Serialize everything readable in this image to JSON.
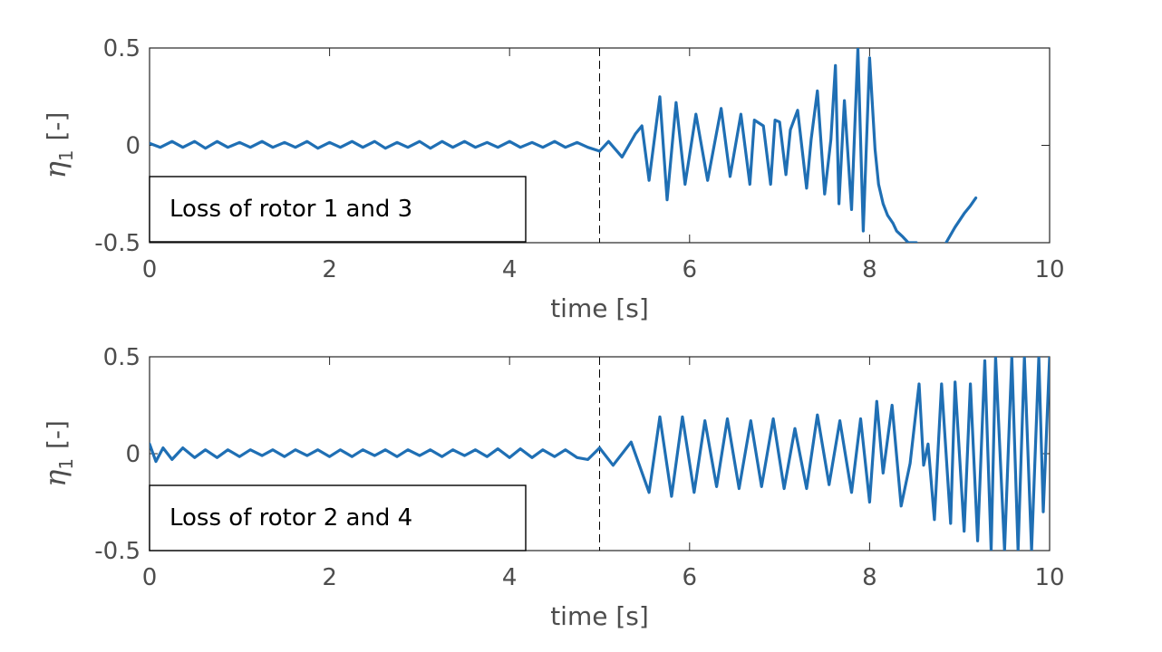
{
  "chart_data": [
    {
      "type": "line",
      "xlabel": "time [s]",
      "ylabel_main": "η",
      "ylabel_sub": "1",
      "ylabel_unit": "[-]",
      "xlim": [
        0,
        10
      ],
      "ylim": [
        -0.5,
        0.5
      ],
      "xticks": [
        0,
        2,
        4,
        6,
        8,
        10
      ],
      "xtick_labels": [
        "0",
        "2",
        "4",
        "6",
        "8",
        "10"
      ],
      "yticks": [
        -0.5,
        0,
        0.5
      ],
      "ytick_labels": [
        "-0.5",
        "0",
        "0.5"
      ],
      "grid": false,
      "failure_marker_x": 5,
      "annotation": "Loss of rotor 1 and 3",
      "series": [
        {
          "color": "#1f6fb4",
          "segments": [
            {
              "t": [
                0,
                0.12,
                0.25,
                0.37,
                0.5,
                0.62,
                0.75,
                0.87,
                1.0,
                1.12,
                1.25,
                1.37,
                1.5,
                1.62,
                1.75,
                1.87,
                2.0,
                2.12,
                2.25,
                2.37,
                2.5,
                2.62,
                2.75,
                2.87,
                3.0,
                3.12,
                3.25,
                3.37,
                3.5,
                3.62,
                3.75,
                3.87,
                4.0,
                4.12,
                4.25,
                4.37,
                4.5,
                4.62,
                4.75,
                4.87,
                5.0
              ],
              "y": [
                0.01,
                -0.01,
                0.02,
                -0.01,
                0.02,
                -0.015,
                0.02,
                -0.01,
                0.015,
                -0.01,
                0.02,
                -0.01,
                0.015,
                -0.01,
                0.02,
                -0.015,
                0.015,
                -0.01,
                0.02,
                -0.01,
                0.02,
                -0.015,
                0.015,
                -0.01,
                0.02,
                -0.015,
                0.02,
                -0.01,
                0.02,
                -0.01,
                0.015,
                -0.01,
                0.02,
                -0.01,
                0.015,
                -0.01,
                0.02,
                -0.01,
                0.015,
                -0.01,
                -0.03
              ]
            },
            {
              "t": [
                5.0,
                5.1,
                5.25,
                5.4,
                5.47,
                5.55,
                5.67,
                5.75,
                5.85,
                5.95,
                6.07,
                6.2,
                6.35,
                6.45,
                6.57,
                6.67,
                6.72,
                6.82,
                6.9,
                6.95,
                7.0,
                7.07,
                7.12,
                7.2,
                7.3,
                7.35,
                7.42,
                7.5,
                7.57,
                7.62,
                7.66,
                7.72,
                7.8,
                7.87,
                7.93,
                8.0,
                8.06,
                8.1,
                8.15,
                8.2,
                8.26,
                8.3,
                8.37,
                8.43,
                8.5,
                8.52
              ],
              "y": [
                -0.03,
                0.02,
                -0.06,
                0.06,
                0.1,
                -0.18,
                0.25,
                -0.28,
                0.22,
                -0.2,
                0.16,
                -0.18,
                0.19,
                -0.16,
                0.16,
                -0.2,
                0.13,
                0.1,
                -0.2,
                0.13,
                0.12,
                -0.15,
                0.08,
                0.18,
                -0.22,
                0.03,
                0.28,
                -0.25,
                0.03,
                0.41,
                -0.3,
                0.23,
                -0.33,
                0.5,
                -0.44,
                0.45,
                -0.02,
                -0.2,
                -0.3,
                -0.36,
                -0.4,
                -0.44,
                -0.47,
                -0.5,
                -0.5,
                -0.5
              ]
            },
            {
              "t": [
                8.85,
                8.95,
                9.05,
                9.12,
                9.18
              ],
              "y": [
                -0.5,
                -0.42,
                -0.35,
                -0.31,
                -0.27
              ]
            }
          ]
        }
      ]
    },
    {
      "type": "line",
      "xlabel": "time [s]",
      "ylabel_main": "η",
      "ylabel_sub": "1",
      "ylabel_unit": "[-]",
      "xlim": [
        0,
        10
      ],
      "ylim": [
        -0.5,
        0.5
      ],
      "xticks": [
        0,
        2,
        4,
        6,
        8,
        10
      ],
      "xtick_labels": [
        "0",
        "2",
        "4",
        "6",
        "8",
        "10"
      ],
      "yticks": [
        -0.5,
        0,
        0.5
      ],
      "ytick_labels": [
        "-0.5",
        "0",
        "0.5"
      ],
      "grid": false,
      "failure_marker_x": 5,
      "annotation": "Loss of rotor 2 and 4",
      "series": [
        {
          "color": "#1f6fb4",
          "segments": [
            {
              "t": [
                0,
                0.07,
                0.15,
                0.25,
                0.37,
                0.5,
                0.62,
                0.75,
                0.87,
                1.0,
                1.12,
                1.25,
                1.37,
                1.5,
                1.62,
                1.75,
                1.87,
                2.0,
                2.12,
                2.25,
                2.37,
                2.5,
                2.62,
                2.75,
                2.87,
                3.0,
                3.12,
                3.25,
                3.37,
                3.5,
                3.62,
                3.75,
                3.87,
                4.0,
                4.12,
                4.25,
                4.37,
                4.5,
                4.62,
                4.75,
                4.87,
                5.0
              ],
              "y": [
                0.05,
                -0.04,
                0.03,
                -0.03,
                0.03,
                -0.02,
                0.02,
                -0.02,
                0.02,
                -0.015,
                0.02,
                -0.01,
                0.02,
                -0.015,
                0.02,
                -0.01,
                0.02,
                -0.015,
                0.02,
                -0.015,
                0.02,
                -0.01,
                0.02,
                -0.015,
                0.02,
                -0.01,
                0.02,
                -0.015,
                0.02,
                -0.01,
                0.02,
                -0.015,
                0.025,
                -0.02,
                0.025,
                -0.02,
                0.02,
                -0.015,
                0.02,
                -0.02,
                -0.03,
                0.03
              ]
            },
            {
              "t": [
                5.0,
                5.15,
                5.35,
                5.55,
                5.67,
                5.8,
                5.92,
                6.05,
                6.17,
                6.3,
                6.42,
                6.55,
                6.68,
                6.8,
                6.93,
                7.05,
                7.17,
                7.3,
                7.42,
                7.55,
                7.67,
                7.8,
                7.9,
                8.0,
                8.08,
                8.15,
                8.25,
                8.35,
                8.45,
                8.55,
                8.6,
                8.65,
                8.72,
                8.8,
                8.9,
                8.95,
                9.05,
                9.12,
                9.2,
                9.28,
                9.35,
                9.4,
                9.5,
                9.58,
                9.65,
                9.72,
                9.8,
                9.88,
                9.93,
                10.0
              ],
              "y": [
                0.03,
                -0.06,
                0.06,
                -0.2,
                0.19,
                -0.22,
                0.19,
                -0.2,
                0.17,
                -0.17,
                0.18,
                -0.18,
                0.17,
                -0.17,
                0.18,
                -0.18,
                0.13,
                -0.18,
                0.2,
                -0.16,
                0.17,
                -0.2,
                0.18,
                -0.25,
                0.27,
                -0.1,
                0.25,
                -0.27,
                -0.05,
                0.36,
                -0.06,
                0.05,
                -0.34,
                0.36,
                -0.36,
                0.37,
                -0.4,
                0.36,
                -0.45,
                0.48,
                -0.5,
                0.5,
                -0.5,
                0.5,
                -0.5,
                0.5,
                -0.5,
                0.5,
                -0.3,
                0.5
              ]
            }
          ]
        }
      ]
    }
  ]
}
